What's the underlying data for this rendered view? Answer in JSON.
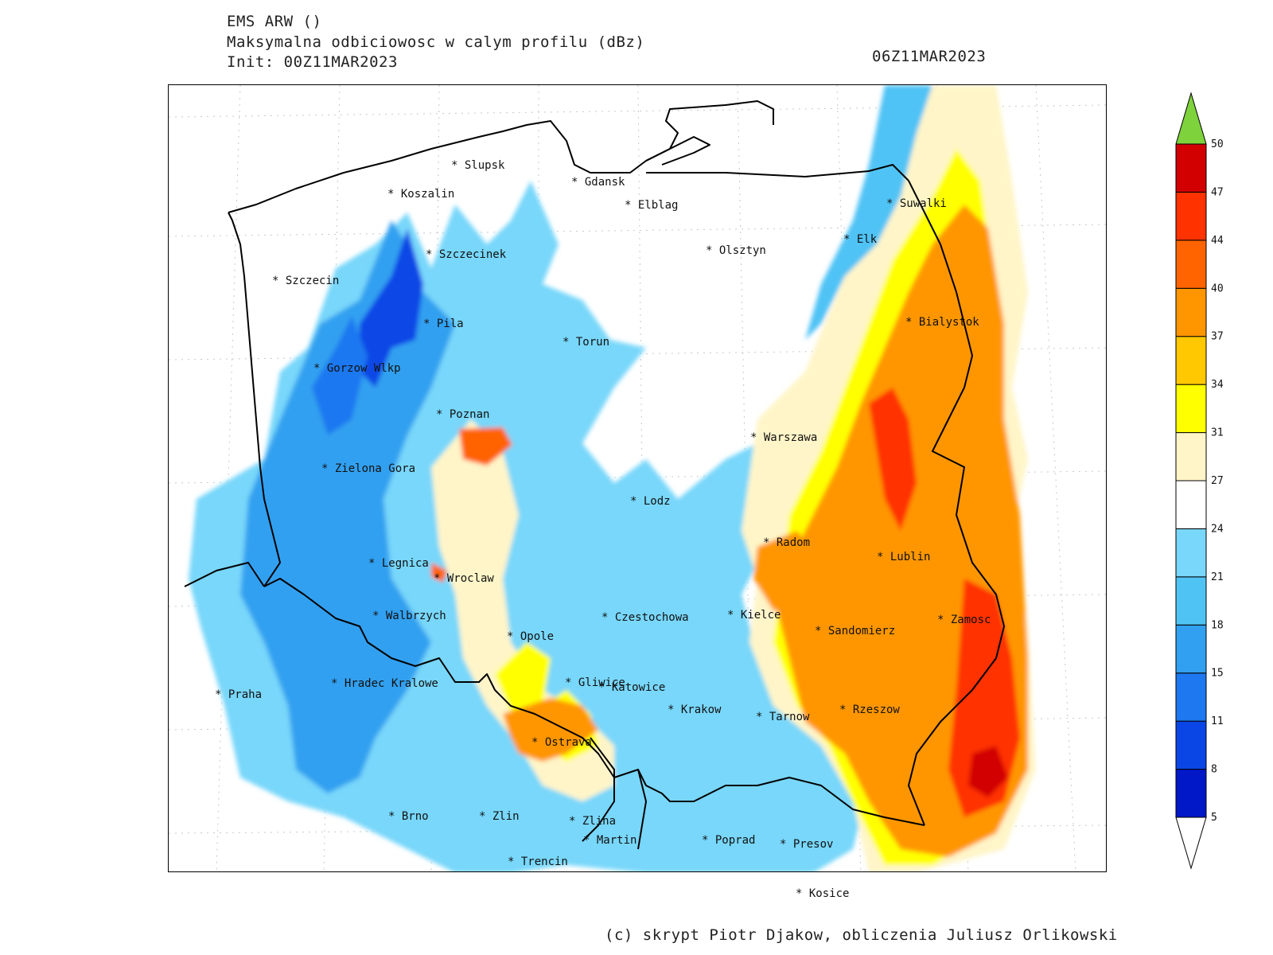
{
  "header": {
    "model": "EMS ARW ()",
    "field": "Maksymalna odbiciowosc w calym profilu (dBz)",
    "init": "Init: 00Z11MAR2023",
    "valid": "06Z11MAR2023"
  },
  "credit": "(c) skrypt Piotr Djakow, obliczenia Juliusz Orlikowski",
  "cities": [
    {
      "name": "Slupsk"
    },
    {
      "name": "Koszalin"
    },
    {
      "name": "Gdansk"
    },
    {
      "name": "Elblag"
    },
    {
      "name": "Suwalki"
    },
    {
      "name": "Elk"
    },
    {
      "name": "Szczecinek"
    },
    {
      "name": "Olsztyn"
    },
    {
      "name": "Szczecin"
    },
    {
      "name": "Pila"
    },
    {
      "name": "Bialystok"
    },
    {
      "name": "Torun"
    },
    {
      "name": "Gorzow Wlkp"
    },
    {
      "name": "Poznan"
    },
    {
      "name": "Warszawa"
    },
    {
      "name": "Zielona Gora"
    },
    {
      "name": "Lodz"
    },
    {
      "name": "Radom"
    },
    {
      "name": "Lublin"
    },
    {
      "name": "Legnica"
    },
    {
      "name": "Wroclaw"
    },
    {
      "name": "Walbrzych"
    },
    {
      "name": "Czestochowa"
    },
    {
      "name": "Kielce"
    },
    {
      "name": "Zamosc"
    },
    {
      "name": "Sandomierz"
    },
    {
      "name": "Opole"
    },
    {
      "name": "Hradec Kralowe"
    },
    {
      "name": "Gliwice"
    },
    {
      "name": "Katowice"
    },
    {
      "name": "Praha"
    },
    {
      "name": "Krakow"
    },
    {
      "name": "Tarnow"
    },
    {
      "name": "Rzeszow"
    },
    {
      "name": "Ostrava"
    },
    {
      "name": "Brno"
    },
    {
      "name": "Zlin"
    },
    {
      "name": "Zlina"
    },
    {
      "name": "Martin"
    },
    {
      "name": "Poprad"
    },
    {
      "name": "Presov"
    },
    {
      "name": "Trencin"
    },
    {
      "name": "Kosice"
    }
  ],
  "colorbar": {
    "unit": "dBz",
    "levels": [
      "5",
      "8",
      "11",
      "15",
      "18",
      "21",
      "24",
      "27",
      "31",
      "34",
      "37",
      "40",
      "44",
      "47",
      "50"
    ],
    "colors": [
      "#0018c8",
      "#0a46e6",
      "#1e78f0",
      "#32a0f0",
      "#50c3f5",
      "#78d7fa",
      "#ffffff",
      "#fff5c8",
      "#ffff00",
      "#ffc800",
      "#ff9600",
      "#ff6400",
      "#ff3200",
      "#d20000"
    ],
    "under_color": "#ffffff",
    "over_color": "#7ed23c"
  }
}
